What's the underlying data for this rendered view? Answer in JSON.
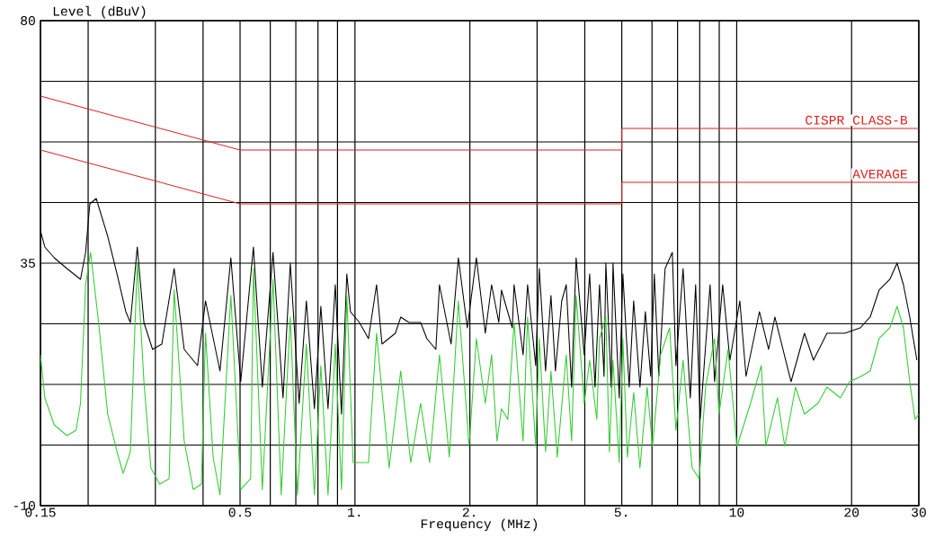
{
  "chart_data": {
    "type": "line",
    "ylabel": "Level (dBuV)",
    "xlabel": "Frequency (MHz)",
    "log": "x",
    "grid": true,
    "xlim": [
      0.15,
      30
    ],
    "ylim": [
      -10,
      80
    ],
    "xticks": [
      0.15,
      {
        "value": 0.2,
        "label": null
      },
      {
        "value": 0.3,
        "label": null
      },
      {
        "value": 0.4,
        "label": null
      },
      0.5,
      {
        "value": 0.6,
        "label": null
      },
      {
        "value": 0.7,
        "label": null
      },
      {
        "value": 0.8,
        "label": null
      },
      {
        "value": 0.9,
        "label": null
      },
      {
        "value": 1,
        "label": "1."
      },
      {
        "value": 2,
        "label": "2."
      },
      {
        "value": 3,
        "label": null
      },
      {
        "value": 4,
        "label": null
      },
      {
        "value": 5,
        "label": "5."
      },
      {
        "value": 6,
        "label": null
      },
      {
        "value": 7,
        "label": null
      },
      {
        "value": 8,
        "label": null
      },
      {
        "value": 9,
        "label": null
      },
      10,
      20,
      30
    ],
    "yticks": [
      -10,
      {
        "value": 1.25,
        "label": null
      },
      {
        "value": 12.5,
        "label": null
      },
      {
        "value": 23.75,
        "label": null
      },
      35,
      {
        "value": 46.25,
        "label": null
      },
      {
        "value": 57.5,
        "label": null
      },
      {
        "value": 68.75,
        "label": null
      },
      80
    ],
    "series": [
      {
        "name": "CISPR CLASS-B",
        "color": "#e02020",
        "x": [
          0.15,
          0.5,
          5,
          5,
          30
        ],
        "values": [
          66,
          56,
          56,
          60,
          60
        ]
      },
      {
        "name": "AVERAGE",
        "color": "#e02020",
        "x": [
          0.15,
          0.5,
          5,
          5,
          30
        ],
        "values": [
          56,
          46,
          46,
          50,
          50
        ]
      },
      {
        "color": "#000000",
        "x": [
          0.15,
          0.154,
          0.163,
          0.176,
          0.191,
          0.197,
          0.202,
          0.21,
          0.225,
          0.238,
          0.251,
          0.258,
          0.269,
          0.28,
          0.295,
          0.312,
          0.336,
          0.357,
          0.387,
          0.406,
          0.443,
          0.473,
          0.502,
          0.542,
          0.572,
          0.61,
          0.648,
          0.677,
          0.714,
          0.746,
          0.783,
          0.814,
          0.85,
          0.888,
          0.922,
          0.952,
          0.973,
          1.027,
          1.085,
          1.139,
          1.177,
          1.276,
          1.318,
          1.385,
          1.486,
          1.543,
          1.629,
          1.665,
          1.786,
          1.866,
          1.97,
          2.08,
          2.195,
          2.28,
          2.381,
          2.42,
          2.583,
          2.611,
          2.757,
          2.833,
          2.975,
          3.04,
          3.157,
          3.262,
          3.351,
          3.481,
          3.577,
          3.695,
          3.797,
          3.987,
          4.119,
          4.255,
          4.372,
          4.493,
          4.542,
          4.692,
          4.742,
          4.925,
          5.033,
          5.228,
          5.372,
          5.579,
          5.763,
          5.954,
          6.084,
          6.252,
          6.494,
          6.783,
          6.931,
          7.238,
          7.559,
          7.808,
          8.024,
          8.518,
          8.75,
          9.19,
          9.6,
          10.19,
          10.58,
          11.47,
          12.12,
          12.59,
          13.88,
          15.05,
          15.89,
          17.24,
          19.21,
          21.07,
          22.37,
          23.61,
          25.19,
          26.31,
          27.34,
          28.4,
          29.65
        ],
        "values": [
          41,
          38,
          36,
          34,
          32,
          37,
          46,
          47,
          40,
          33,
          26,
          24,
          38,
          24,
          19,
          20,
          34,
          19,
          16,
          28,
          15,
          36,
          13,
          38,
          12,
          37,
          10,
          35,
          9,
          28,
          8,
          27,
          8,
          31,
          7,
          33,
          26,
          24,
          21,
          31,
          20,
          22,
          25,
          24,
          24,
          21,
          19,
          31,
          20,
          36,
          23,
          36,
          22,
          31,
          24,
          30,
          23,
          31,
          18,
          31,
          16,
          34,
          15,
          29,
          15,
          28,
          31,
          12,
          36,
          18,
          33,
          12,
          31,
          14,
          35,
          12,
          35,
          10,
          33,
          12,
          28,
          12,
          26,
          14,
          33,
          14,
          34,
          37,
          16,
          34,
          10,
          31,
          6,
          31,
          13,
          31,
          17,
          28,
          14,
          26,
          19,
          25,
          13,
          22,
          17,
          22,
          22,
          23,
          25,
          30,
          32,
          35,
          31,
          25,
          17
        ]
      },
      {
        "color": "#33cc33",
        "x": [
          0.15,
          0.154,
          0.163,
          0.176,
          0.186,
          0.191,
          0.197,
          0.203,
          0.213,
          0.225,
          0.238,
          0.247,
          0.258,
          0.269,
          0.28,
          0.292,
          0.308,
          0.326,
          0.336,
          0.357,
          0.377,
          0.396,
          0.406,
          0.425,
          0.443,
          0.473,
          0.502,
          0.533,
          0.542,
          0.572,
          0.61,
          0.641,
          0.677,
          0.707,
          0.746,
          0.783,
          0.814,
          0.85,
          0.888,
          0.922,
          0.952,
          0.989,
          1.085,
          1.139,
          1.229,
          1.318,
          1.4,
          1.486,
          1.569,
          1.665,
          1.767,
          1.866,
          1.991,
          2.08,
          2.195,
          2.28,
          2.355,
          2.42,
          2.514,
          2.611,
          2.757,
          2.833,
          2.975,
          3.04,
          3.157,
          3.262,
          3.388,
          3.577,
          3.695,
          3.797,
          3.987,
          4.119,
          4.301,
          4.372,
          4.542,
          4.641,
          4.742,
          4.925,
          5.033,
          5.172,
          5.372,
          5.579,
          5.826,
          6.02,
          6.32,
          6.674,
          6.931,
          7.238,
          7.641,
          7.98,
          8.289,
          8.75,
          8.99,
          9.49,
          10.02,
          10.87,
          11.6,
          11.92,
          12.79,
          13.36,
          14.26,
          15.05,
          16.33,
          17.24,
          18.7,
          19.74,
          21.18,
          22.37,
          23.61,
          25.19,
          26.31,
          27.34,
          28.4,
          29.33,
          30
        ],
        "values": [
          18,
          10,
          5,
          3,
          4,
          9,
          31,
          37,
          24,
          7,
          0,
          -4,
          0,
          35,
          13,
          -3,
          -6,
          -5,
          30,
          2,
          -7,
          -6,
          22,
          -1,
          -8,
          29,
          -7,
          -5,
          34,
          -7,
          32,
          -8,
          25,
          -8,
          20,
          -8,
          16,
          -8,
          20,
          -7,
          29,
          -2,
          -2,
          22,
          -3,
          15,
          -2,
          9,
          -2,
          18,
          -1,
          28,
          1,
          21,
          9,
          18,
          2,
          8,
          6,
          24,
          2,
          25,
          1,
          21,
          0,
          15,
          -1,
          18,
          2,
          29,
          9,
          17,
          6,
          21,
          25,
          0,
          17,
          -2,
          21,
          -1,
          11,
          -3,
          12,
          1,
          18,
          23,
          4,
          17,
          -3,
          -5,
          12,
          21,
          7,
          19,
          1,
          9,
          16,
          1,
          10,
          1,
          12,
          7,
          9,
          12,
          10,
          13,
          14,
          15,
          21,
          23,
          27,
          23,
          13,
          6,
          7
        ]
      }
    ]
  }
}
